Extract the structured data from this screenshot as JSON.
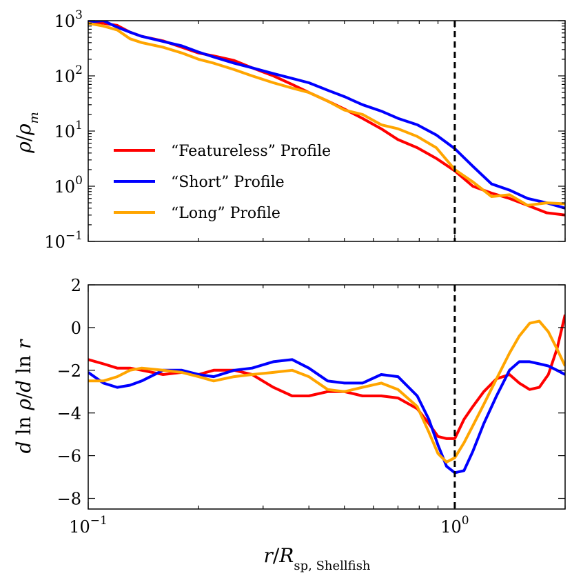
{
  "chart_data": [
    {
      "type": "line",
      "panel": "top",
      "ylabel": "ρ/ρm",
      "xscale": "log",
      "yscale": "log",
      "xlim": [
        0.1,
        2.0
      ],
      "ylim": [
        0.1,
        1000
      ],
      "yticks": [
        0.1,
        1,
        10,
        100,
        1000
      ],
      "ytick_labels": [
        {
          "base": "10",
          "exp": "−1"
        },
        {
          "base": "10",
          "exp": "0"
        },
        {
          "base": "10",
          "exp": "1"
        },
        {
          "base": "10",
          "exp": "2"
        },
        {
          "base": "10",
          "exp": "3"
        }
      ],
      "vline_x": 1.0,
      "legend_position": "center-left",
      "series": [
        {
          "name": "“Featureless” Profile",
          "color": "#ff0000",
          "x": [
            0.1,
            0.11,
            0.12,
            0.13,
            0.14,
            0.16,
            0.18,
            0.2,
            0.22,
            0.25,
            0.28,
            0.32,
            0.36,
            0.4,
            0.45,
            0.5,
            0.56,
            0.63,
            0.7,
            0.79,
            0.89,
            1.0,
            1.12,
            1.26,
            1.41,
            1.58,
            1.78,
            2.0
          ],
          "y": [
            950,
            900,
            820,
            620,
            520,
            430,
            330,
            260,
            230,
            190,
            140,
            100,
            70,
            50,
            35,
            25,
            17,
            11,
            7,
            5,
            3.2,
            1.9,
            1.0,
            0.75,
            0.6,
            0.45,
            0.33,
            0.3
          ]
        },
        {
          "name": "“Short” Profile",
          "color": "#0000ff",
          "x": [
            0.1,
            0.11,
            0.12,
            0.13,
            0.14,
            0.16,
            0.18,
            0.2,
            0.22,
            0.25,
            0.28,
            0.32,
            0.36,
            0.4,
            0.45,
            0.5,
            0.56,
            0.63,
            0.7,
            0.79,
            0.89,
            1.0,
            1.12,
            1.26,
            1.41,
            1.58,
            1.78,
            2.0
          ],
          "y": [
            950,
            1000,
            760,
            620,
            520,
            420,
            350,
            270,
            220,
            170,
            140,
            110,
            90,
            75,
            55,
            42,
            30,
            23,
            17,
            13,
            8.5,
            4.8,
            2.3,
            1.1,
            0.85,
            0.6,
            0.5,
            0.4
          ]
        },
        {
          "name": "“Long” Profile",
          "color": "#ffa500",
          "x": [
            0.1,
            0.11,
            0.12,
            0.13,
            0.14,
            0.16,
            0.18,
            0.2,
            0.22,
            0.25,
            0.28,
            0.32,
            0.36,
            0.4,
            0.45,
            0.5,
            0.56,
            0.63,
            0.7,
            0.79,
            0.89,
            1.0,
            1.12,
            1.26,
            1.41,
            1.58,
            1.78,
            2.0
          ],
          "y": [
            900,
            800,
            680,
            470,
            400,
            330,
            260,
            200,
            170,
            130,
            100,
            75,
            60,
            50,
            35,
            24,
            20,
            13,
            11,
            8,
            5,
            2,
            1.2,
            0.65,
            0.7,
            0.45,
            0.5,
            0.48
          ]
        }
      ]
    },
    {
      "type": "line",
      "panel": "bottom",
      "xlabel": "r/Rsp, Shellfish",
      "ylabel": "d ln ρ/d ln r",
      "xscale": "log",
      "xlim": [
        0.1,
        2.0
      ],
      "ylim": [
        -8.5,
        2
      ],
      "xticks": [
        0.1,
        1.0
      ],
      "xtick_labels": [
        {
          "base": "10",
          "exp": "−1"
        },
        {
          "base": "10",
          "exp": "0"
        }
      ],
      "yticks": [
        -8,
        -6,
        -4,
        -2,
        0,
        2
      ],
      "ytick_labels": [
        "−8",
        "−6",
        "−4",
        "−2",
        "0",
        "2"
      ],
      "vline_x": 1.0,
      "series": [
        {
          "name": "“Featureless” Profile",
          "color": "#ff0000",
          "x": [
            0.1,
            0.11,
            0.12,
            0.13,
            0.14,
            0.16,
            0.18,
            0.2,
            0.22,
            0.25,
            0.28,
            0.32,
            0.36,
            0.4,
            0.45,
            0.5,
            0.56,
            0.63,
            0.7,
            0.79,
            0.85,
            0.9,
            0.95,
            1.0,
            1.06,
            1.12,
            1.2,
            1.3,
            1.41,
            1.5,
            1.6,
            1.7,
            1.8,
            1.9,
            2.0
          ],
          "y": [
            -1.5,
            -1.7,
            -1.9,
            -1.9,
            -2.0,
            -2.2,
            -2.1,
            -2.2,
            -2.0,
            -2.0,
            -2.2,
            -2.8,
            -3.2,
            -3.2,
            -3.0,
            -3.0,
            -3.2,
            -3.2,
            -3.3,
            -3.8,
            -4.5,
            -5.1,
            -5.2,
            -5.2,
            -4.3,
            -3.7,
            -3.0,
            -2.4,
            -2.2,
            -2.6,
            -2.9,
            -2.8,
            -2.2,
            -1.0,
            0.6
          ]
        },
        {
          "name": "“Short” Profile",
          "color": "#0000ff",
          "x": [
            0.1,
            0.11,
            0.12,
            0.13,
            0.14,
            0.16,
            0.18,
            0.2,
            0.22,
            0.25,
            0.28,
            0.32,
            0.36,
            0.4,
            0.45,
            0.5,
            0.56,
            0.63,
            0.7,
            0.79,
            0.85,
            0.9,
            0.95,
            1.0,
            1.06,
            1.12,
            1.2,
            1.3,
            1.41,
            1.5,
            1.6,
            1.7,
            1.8,
            1.9,
            2.0
          ],
          "y": [
            -2.1,
            -2.6,
            -2.8,
            -2.7,
            -2.5,
            -2.0,
            -2.0,
            -2.2,
            -2.3,
            -2.0,
            -1.9,
            -1.6,
            -1.5,
            -1.9,
            -2.5,
            -2.6,
            -2.6,
            -2.2,
            -2.3,
            -3.2,
            -4.3,
            -5.5,
            -6.5,
            -6.8,
            -6.7,
            -5.8,
            -4.5,
            -3.2,
            -2.0,
            -1.6,
            -1.6,
            -1.7,
            -1.8,
            -2.0,
            -2.2
          ]
        },
        {
          "name": "“Long” Profile",
          "color": "#ffa500",
          "x": [
            0.1,
            0.11,
            0.12,
            0.13,
            0.14,
            0.16,
            0.18,
            0.2,
            0.22,
            0.25,
            0.28,
            0.32,
            0.36,
            0.4,
            0.45,
            0.5,
            0.56,
            0.63,
            0.7,
            0.79,
            0.85,
            0.9,
            0.95,
            1.0,
            1.06,
            1.12,
            1.2,
            1.3,
            1.41,
            1.5,
            1.6,
            1.7,
            1.8,
            1.9,
            2.0
          ],
          "y": [
            -2.5,
            -2.5,
            -2.3,
            -2.0,
            -1.9,
            -2.0,
            -2.1,
            -2.3,
            -2.5,
            -2.3,
            -2.2,
            -2.1,
            -2.0,
            -2.3,
            -2.9,
            -3.0,
            -2.8,
            -2.6,
            -2.9,
            -3.7,
            -4.9,
            -5.9,
            -6.3,
            -6.1,
            -5.4,
            -4.6,
            -3.6,
            -2.4,
            -1.2,
            -0.4,
            0.2,
            0.3,
            -0.2,
            -1.0,
            -1.8
          ]
        }
      ]
    }
  ]
}
